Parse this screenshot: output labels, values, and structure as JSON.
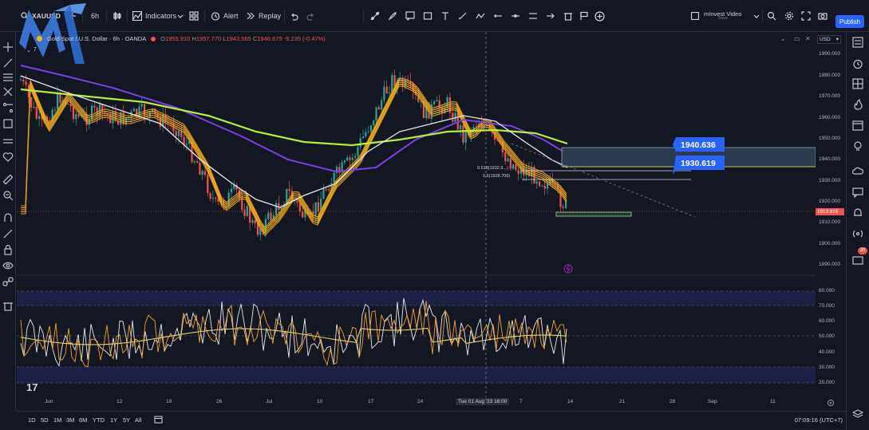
{
  "topbar": {
    "symbol": "XAUUSD",
    "interval": "6h",
    "indicators_label": "Indicators",
    "alert_label": "Alert",
    "replay_label": "Replay",
    "layout_name": "mInvest Video",
    "layout_sub": "Save",
    "publish_label": "Publish"
  },
  "legend": {
    "title": "Gold Spot / U.S. Dollar · 6h · OANDA",
    "open_label": "O",
    "open": "1955.910",
    "high_label": "H",
    "high": "1957.770",
    "low_label": "L",
    "low": "1943.565",
    "close_label": "C",
    "close": "1946.675",
    "change": "-9.235 (-0.47%)",
    "sub_count": "7"
  },
  "price_axis": {
    "currency": "USD",
    "labels": [
      "1990.000",
      "1980.000",
      "1970.000",
      "1960.000",
      "1950.000",
      "1940.000",
      "1930.000",
      "1920.000",
      "1910.000",
      "1900.000",
      "1890.000"
    ],
    "current_price": "1913.815",
    "rsi_labels": [
      "80.000",
      "70.000",
      "60.000",
      "50.000",
      "40.000",
      "30.000",
      "20.000"
    ]
  },
  "annotations": {
    "level_1": "1940.636",
    "level_2": "1930.619",
    "fib_618": "0.618(1932.9...)",
    "fib_5": "0.5(1928.706)",
    "alert_badge": "30"
  },
  "time_axis": {
    "labels": [
      "Jun",
      "12",
      "19",
      "26",
      "Jul",
      "10",
      "17",
      "24",
      "7",
      "14",
      "21",
      "28",
      "Sep",
      "11"
    ],
    "cursor_label": "Tue 01 Aug '23   16:00"
  },
  "bottombar": {
    "timeframes": [
      "1D",
      "5D",
      "1M",
      "3M",
      "6M",
      "YTD",
      "1Y",
      "5Y",
      "All"
    ],
    "clock": "07:09:16 (UTC+7)"
  },
  "colors": {
    "background": "#131722",
    "up": "#26a69a",
    "down": "#ef5350",
    "ma_green": "#b4f03c",
    "ma_purple": "#7b3fe4",
    "ma_white": "#e8e8e8",
    "ribbon": "#f0b90b",
    "label_blue": "#2962ff",
    "publish_blue": "#2962ff"
  }
}
